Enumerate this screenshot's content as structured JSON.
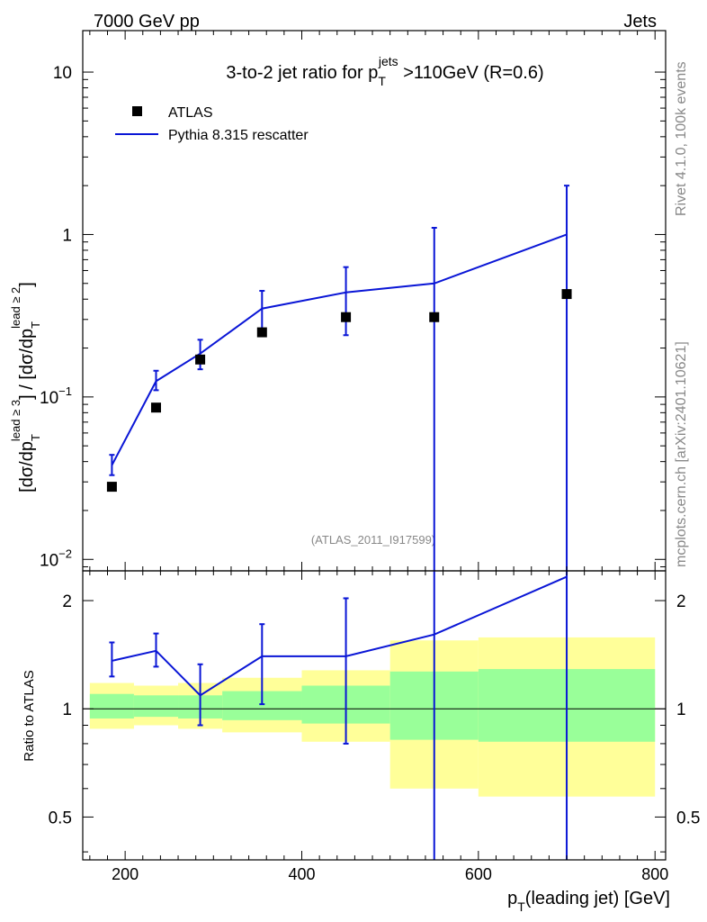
{
  "header": {
    "left": "7000 GeV pp",
    "right": "Jets"
  },
  "side_texts": {
    "rivet": "Rivet 4.1.0,  100k events",
    "mcplots": "mcplots.cern.ch [arXiv:2401.10621]"
  },
  "chart_data": {
    "type": "line",
    "title": {
      "prefix": "3-to-2 jet ratio for p",
      "sub": "T",
      "sup": "jets",
      "suffix": " >110GeV (R=0.6)"
    },
    "analysis_id": "(ATLAS_2011_I917599)",
    "xlabel": {
      "main": "p",
      "sub": "T",
      "rest": "(leading jet) [GeV]"
    },
    "ylabel": {
      "open": "[d",
      "sigma": "σ",
      "slash_d": "/dp",
      "sub": "T",
      "sup_num": "lead ≥ 3",
      "sep": "] / [d",
      "sup_den": "lead ≥ 2",
      "close": "]"
    },
    "ratio_ylabel": "Ratio to ATLAS",
    "xlim": [
      152,
      812
    ],
    "main_ylim": [
      0.0085,
      18
    ],
    "main_yscale": "log",
    "ratio_ylim": [
      0.38,
      2.42
    ],
    "ratio_yscale": "log",
    "x_ticks": [
      200,
      400,
      600,
      800
    ],
    "x_tick_labels": [
      "200",
      "400",
      "600",
      "800"
    ],
    "main_y_ticks": [
      {
        "value": 0.01,
        "base": "10",
        "exp": "−2"
      },
      {
        "value": 0.1,
        "base": "10",
        "exp": "−1"
      },
      {
        "value": 1,
        "base": "1",
        "exp": ""
      },
      {
        "value": 10,
        "base": "10",
        "exp": ""
      }
    ],
    "ratio_y_ticks": [
      {
        "value": 0.5,
        "label": "0.5"
      },
      {
        "value": 1,
        "label": "1"
      },
      {
        "value": 2,
        "label": "2"
      }
    ],
    "legend": {
      "position": "top-left",
      "entries": [
        {
          "name": "ATLAS",
          "style": "marker"
        },
        {
          "name": "Pythia 8.315 rescatter",
          "style": "line"
        }
      ]
    },
    "colors": {
      "data": "#000000",
      "mc": "#0a16d6",
      "band_inner": "#99ff99",
      "band_outer": "#ffff99"
    },
    "series": [
      {
        "name": "ATLAS",
        "x": [
          185,
          235,
          285,
          355,
          450,
          550,
          700
        ],
        "y": [
          0.028,
          0.086,
          0.17,
          0.25,
          0.31,
          0.31,
          0.43
        ]
      },
      {
        "name": "Pythia 8.315 rescatter",
        "x": [
          185,
          235,
          285,
          355,
          450,
          550,
          700
        ],
        "y": [
          0.038,
          0.125,
          0.185,
          0.35,
          0.44,
          0.5,
          1.0
        ],
        "y_low": [
          0.033,
          0.11,
          0.148,
          0.26,
          0.24,
          0.0085,
          0.0085
        ],
        "y_high": [
          0.044,
          0.145,
          0.225,
          0.45,
          0.63,
          1.1,
          2.0
        ]
      }
    ],
    "ratio": {
      "x": [
        185,
        235,
        285,
        355,
        450,
        550,
        700
      ],
      "mc_ratio": [
        1.36,
        1.45,
        1.09,
        1.4,
        1.4,
        1.61,
        2.33
      ],
      "err_low": [
        1.23,
        1.31,
        0.9,
        1.03,
        0.8,
        0.38,
        0.38
      ],
      "err_high": [
        1.53,
        1.62,
        1.33,
        1.72,
        2.03,
        2.42,
        2.42
      ],
      "bands": [
        {
          "xmin": 160,
          "xmax": 210,
          "inner": [
            0.94,
            1.1
          ],
          "outer": [
            0.88,
            1.18
          ]
        },
        {
          "xmin": 210,
          "xmax": 260,
          "inner": [
            0.95,
            1.09
          ],
          "outer": [
            0.9,
            1.16
          ]
        },
        {
          "xmin": 260,
          "xmax": 310,
          "inner": [
            0.94,
            1.09
          ],
          "outer": [
            0.88,
            1.18
          ]
        },
        {
          "xmin": 310,
          "xmax": 400,
          "inner": [
            0.93,
            1.12
          ],
          "outer": [
            0.86,
            1.22
          ]
        },
        {
          "xmin": 400,
          "xmax": 500,
          "inner": [
            0.91,
            1.16
          ],
          "outer": [
            0.81,
            1.28
          ]
        },
        {
          "xmin": 500,
          "xmax": 600,
          "inner": [
            0.82,
            1.27
          ],
          "outer": [
            0.6,
            1.55
          ]
        },
        {
          "xmin": 600,
          "xmax": 800,
          "inner": [
            0.81,
            1.29
          ],
          "outer": [
            0.57,
            1.58
          ]
        }
      ]
    }
  }
}
